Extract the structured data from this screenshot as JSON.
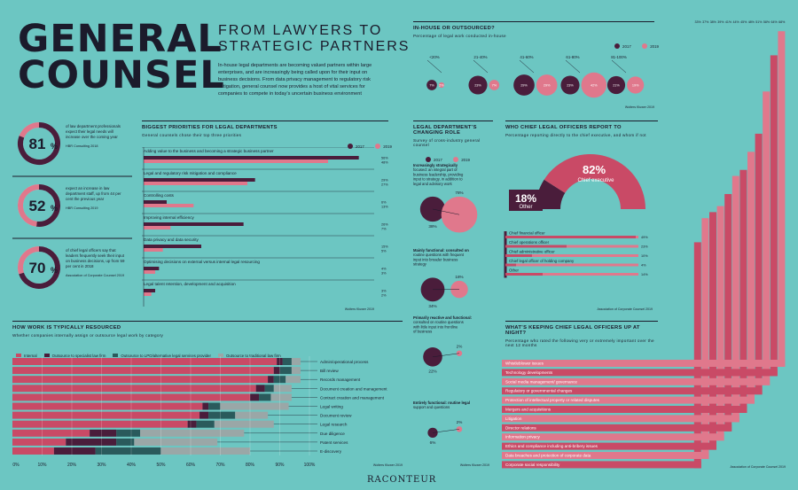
{
  "colors": {
    "teal": "#6cc6c2",
    "dark": "#4a1d3b",
    "pink": "#e0788c",
    "rose": "#c94a66",
    "navy": "#1b1b2b",
    "outsource_specialist": "#c94a66",
    "internal": "#c94a66",
    "lpo": "#2a5a5c",
    "traditional": "#9aa7a7"
  },
  "header": {
    "title_line1": "GENERAL",
    "title_line2": "COUNSEL",
    "subtitle_line1": "FROM LAWYERS TO",
    "subtitle_line2": "STRATEGIC PARTNERS",
    "intro": "In-house legal departments are becoming valued partners within large enterprises, and are increasingly being called upon for their input on business decisions. From data privacy management to regulatory risk mitigation, general counsel now provides a host of vital services for companies to compete in today’s uncertain business environment"
  },
  "stats": [
    {
      "value": "81",
      "unit": "%",
      "text": "of law department professionals expect their legal needs will increase over the coming year",
      "source": "HBR Consulting 2018"
    },
    {
      "value": "52",
      "unit": "%",
      "text": "expect an increase in law department staff, up from 44 per cent the previous year",
      "source": "HBR Consulting 2019"
    },
    {
      "value": "70",
      "unit": "%",
      "text": "of chief legal officers say that leaders frequently seek their input on business decisions, up from 59 per cent in 2018",
      "source": "Association of Corporate Counsel 2019"
    }
  ],
  "chart_data": [
    {
      "id": "priorities",
      "type": "bar",
      "title": "BIGGEST PRIORITIES FOR LEGAL DEPARTMENTS",
      "subtitle": "General counsels chose their top three priorities",
      "legend": [
        "2017",
        "2019"
      ],
      "source": "Wolters Kluwer 2019",
      "categories": [
        "Adding value to the business and becoming a strategic business partner",
        "Legal and regulatory risk mitigation and compliance",
        "Controlling costs",
        "Improving internal efficiency",
        "Data privacy and data security",
        "Optimising decisions on external versus internal legal resourcing",
        "Legal talent retention, development and acquisition"
      ],
      "series": [
        {
          "name": "2017",
          "values": [
            56,
            29,
            6,
            26,
            15,
            4,
            3
          ]
        },
        {
          "name": "2019",
          "values": [
            48,
            27,
            13,
            7,
            5,
            3,
            2
          ]
        }
      ],
      "value_labels": [
        [
          "56%",
          "48%"
        ],
        [
          "29%",
          "27%"
        ],
        [
          "6%",
          "13%"
        ],
        [
          "26%",
          "7%"
        ],
        [
          "15%",
          "5%"
        ],
        [
          "4%",
          "3%"
        ],
        [
          "3%",
          "2%"
        ]
      ]
    },
    {
      "id": "inhouse",
      "type": "bubble",
      "title": "IN-HOUSE OR OUTSOURCED?",
      "subtitle": "Percentage of legal work conducted in-house",
      "legend": [
        "2017",
        "2019"
      ],
      "source": "Wolters Kluwer 2019",
      "categories": [
        "<20%",
        "21-40%",
        "41-60%",
        "61-80%",
        "81-100%"
      ],
      "series": [
        {
          "name": "2017",
          "values": [
            7,
            23,
            29,
            23,
            21
          ]
        },
        {
          "name": "2019",
          "values": [
            2,
            7,
            29,
            42,
            19
          ]
        }
      ],
      "labels": [
        [
          "7%",
          "2%"
        ],
        [
          "23%",
          "7%"
        ],
        [
          "29%",
          "29%"
        ],
        [
          "23%",
          "42%"
        ],
        [
          "21%",
          "19%"
        ]
      ]
    },
    {
      "id": "role",
      "type": "bubble",
      "title": "LEGAL DEPARTMENT’S CHANGING ROLE",
      "subtitle": "Survey of cross-industry general counsel",
      "legend": [
        "2017",
        "2019"
      ],
      "source": "Wolters Kluwer 2019",
      "items": [
        {
          "label_bold": "Increasingly strategically focused:",
          "label": " an integral part of business leadership, providing input to strategy, in addition to legal and advisory work",
          "v2017": "38%",
          "v2019": "78%",
          "n2017": 38,
          "n2019": 78
        },
        {
          "label_bold": "Mainly functional:",
          "label": " consulted on routine questions with frequent input into broader business strategy",
          "v2017": "34%",
          "v2019": "18%",
          "n2017": 34,
          "n2019": 18
        },
        {
          "label_bold": "Primarily reactive and functional:",
          "label": " consulted on routine questions with little input into frontline of business",
          "v2017": "22%",
          "v2019": "2%",
          "n2017": 22,
          "n2019": 2
        },
        {
          "label_bold": "Entirely functional:",
          "label": " routine legal support and questions",
          "v2017": "6%",
          "v2019": "2%",
          "n2017": 6,
          "n2019": 2
        }
      ]
    },
    {
      "id": "reports",
      "type": "bar",
      "title": "WHO CHIEF LEGAL OFFICERS REPORT TO",
      "subtitle": "Percentage reporting directly to the chief executive, and whom if not",
      "arc": [
        {
          "label": "Chief executive",
          "value": 82,
          "text": "82",
          "unit": "%"
        },
        {
          "label": "Other",
          "value": 18,
          "text": "18",
          "unit": "%"
        }
      ],
      "categories": [
        "Chief financial officer",
        "Chief operations officer",
        "Chief administrative officer",
        "Chief legal officer of holding company",
        "Other"
      ],
      "values": [
        49,
        23,
        10,
        4,
        14
      ],
      "value_labels": [
        "49%",
        "23%",
        "10%",
        "4%",
        "14%"
      ],
      "source": "Association of Corporate Counsel 2019"
    },
    {
      "id": "resourced",
      "type": "bar",
      "stacked": true,
      "title": "HOW WORK IS TYPICALLY RESOURCED",
      "subtitle": "Whether companies internally assign or outsource legal work by category",
      "legend": [
        "Internal",
        "Outsource to specialist law firm",
        "Outsource to LPO/alternative legal services provider",
        "Outsource to traditional law firm"
      ],
      "categories": [
        "Admin/operational process",
        "Bill review",
        "Records management",
        "Document creation and management",
        "Contract creation and management",
        "Legal writing",
        "Document review",
        "Legal research",
        "Due diligence",
        "Patent services",
        "E-discovery"
      ],
      "series": [
        {
          "name": "Internal",
          "values": [
            89,
            88,
            86,
            82,
            80,
            64,
            63,
            59,
            26,
            18,
            14
          ]
        },
        {
          "name": "Outsource to specialist law firm",
          "values": [
            2,
            2,
            2,
            3,
            3,
            2,
            3,
            3,
            9,
            17,
            14
          ]
        },
        {
          "name": "Outsource to LPO/alternative legal services provider",
          "values": [
            3,
            4,
            4,
            3,
            4,
            4,
            9,
            6,
            8,
            6,
            22
          ]
        },
        {
          "name": "Outsource to traditional law firm",
          "values": [
            3,
            3,
            5,
            6,
            7,
            23,
            11,
            20,
            35,
            28,
            30
          ]
        }
      ],
      "x_ticks": [
        "0%",
        "10%",
        "20%",
        "30%",
        "40%",
        "50%",
        "60%",
        "70%",
        "80%",
        "90%",
        "100%"
      ],
      "source": "Wolters Kluwer 2019"
    },
    {
      "id": "night",
      "type": "bar",
      "title": "WHAT’S KEEPING CHIEF LEGAL OFFICERS UP AT NIGHT?",
      "subtitle": "Percentage who rated the following very or extremely important over the next 12 months",
      "categories": [
        "Corporate social responsibility",
        "Data breaches and protection of corporate data",
        "Ethics and compliance including anti-bribery issues",
        "Information privacy",
        "Director relations",
        "Litigation",
        "Mergers and acquisitions",
        "Protection of intellectual property or related disputes",
        "Regulatory or governmental changes",
        "Social media management/ governance",
        "Technology developments",
        "Whistleblower issues"
      ],
      "values": [
        33,
        37,
        38,
        39,
        41,
        44,
        45,
        48,
        51,
        58,
        64,
        68
      ],
      "value_labels": [
        "33%",
        "37%",
        "38%",
        "39%",
        "41%",
        "44%",
        "45%",
        "48%",
        "51%",
        "58%",
        "64%",
        "68%"
      ],
      "source": "Association of Corporate Counsel 2019"
    }
  ],
  "footer": {
    "brand": "RACONTEUR"
  }
}
